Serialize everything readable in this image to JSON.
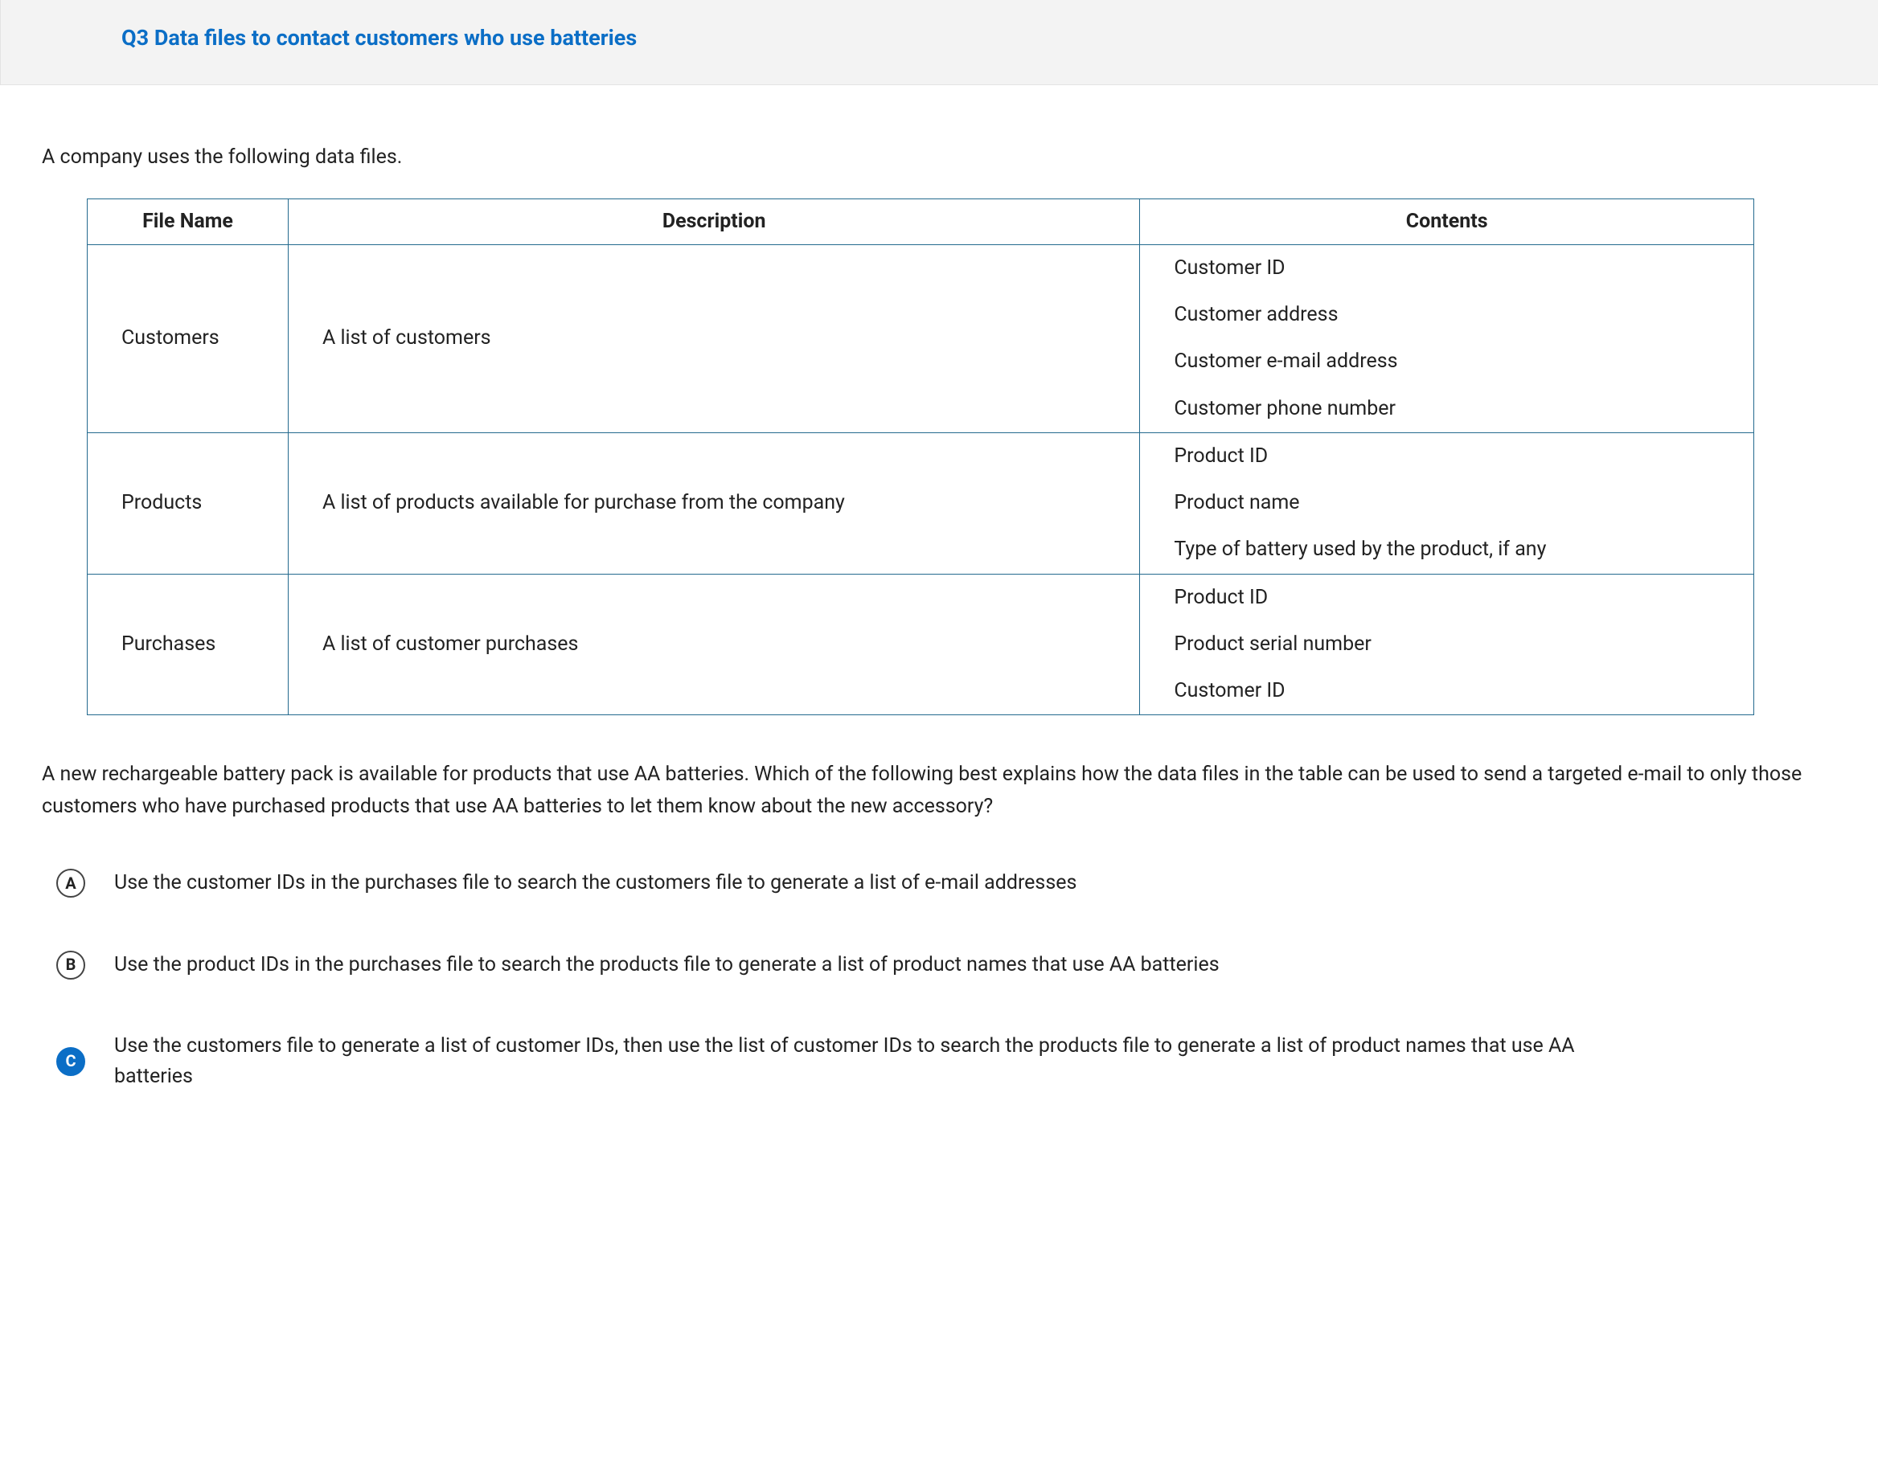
{
  "header": {
    "title": "Q3 Data files to contact customers who use batteries"
  },
  "intro": "A company uses the following data files.",
  "table": {
    "columns": [
      "File Name",
      "Description",
      "Contents"
    ],
    "rows": [
      {
        "file": "Customers",
        "desc": "A list of customers",
        "contents": [
          "Customer ID",
          "Customer address",
          "Customer e-mail address",
          "Customer phone number"
        ]
      },
      {
        "file": "Products",
        "desc": "A list of products available for purchase from the company",
        "contents": [
          "Product ID",
          "Product name",
          "Type of battery used by the product, if any"
        ]
      },
      {
        "file": "Purchases",
        "desc": "A list of customer purchases",
        "contents": [
          "Product ID",
          "Product serial number",
          "Customer ID"
        ]
      }
    ]
  },
  "question": "A new rechargeable battery pack is available for products that use AA batteries. Which of the following best explains how the data files in the table can be used to send a targeted e-mail to only those customers who have purchased products that use AA batteries to let them know about the new accessory?",
  "options": {
    "a": {
      "letter": "A",
      "text": "Use the customer IDs in the purchases file to search the customers file to generate a list of e-mail addresses",
      "selected": false
    },
    "b": {
      "letter": "B",
      "text": "Use the product IDs in the purchases file to search the products file to generate a list of product names that use AA batteries",
      "selected": false
    },
    "c": {
      "letter": "C",
      "text": "Use the customers file to generate a list of customer IDs, then use the list of customer IDs to search the products file to generate a list of product names that use AA batteries",
      "selected": true
    }
  },
  "colors": {
    "header_bg": "#f3f3f3",
    "link_blue": "#0b6ec6",
    "table_border": "#246a8e",
    "text": "#222222"
  }
}
